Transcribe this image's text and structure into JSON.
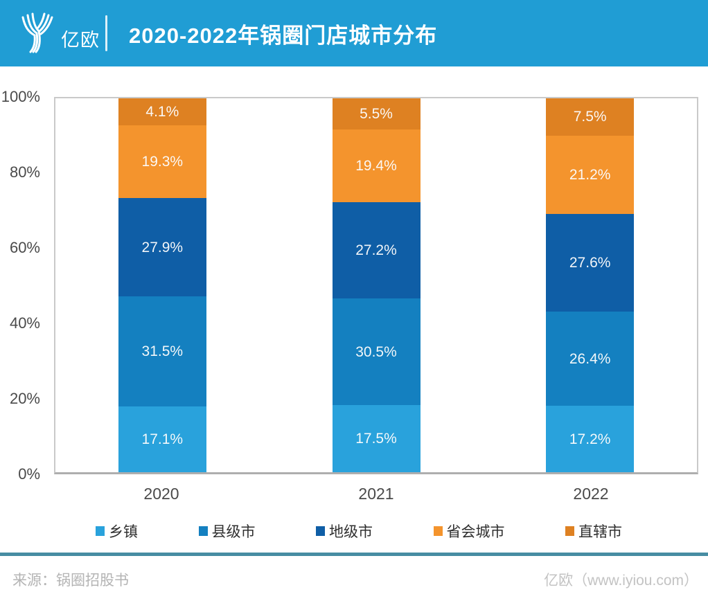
{
  "header": {
    "logo_text": "亿欧",
    "title": "2020-2022年锅圈门店城市分布",
    "background_color": "#209dd4"
  },
  "chart_data": {
    "type": "bar",
    "stacked": true,
    "orientation": "vertical",
    "title": "2020-2022年锅圈门店城市分布",
    "categories": [
      "2020",
      "2021",
      "2022"
    ],
    "series": [
      {
        "name": "乡镇",
        "color": "#29a2dc",
        "values": [
          17.1,
          17.5,
          17.2
        ]
      },
      {
        "name": "县级市",
        "color": "#1480c0",
        "values": [
          31.5,
          30.5,
          26.4
        ]
      },
      {
        "name": "地级市",
        "color": "#0f5ea6",
        "values": [
          27.9,
          27.2,
          27.6
        ]
      },
      {
        "name": "省会城市",
        "color": "#f4942d",
        "values": [
          19.3,
          19.4,
          21.2
        ]
      },
      {
        "name": "直辖市",
        "color": "#de8122",
        "values": [
          4.1,
          5.5,
          7.5
        ]
      }
    ],
    "value_suffix": "%",
    "y_ticks": [
      "100%",
      "80%",
      "60%",
      "40%",
      "20%",
      "0%"
    ],
    "ylim": [
      0,
      100
    ],
    "grid": false,
    "legend_position": "bottom"
  },
  "footer": {
    "source": "来源：锅圈招股书",
    "credit": "亿欧（www.iyiou.com）",
    "divider_color": "#478da3"
  }
}
